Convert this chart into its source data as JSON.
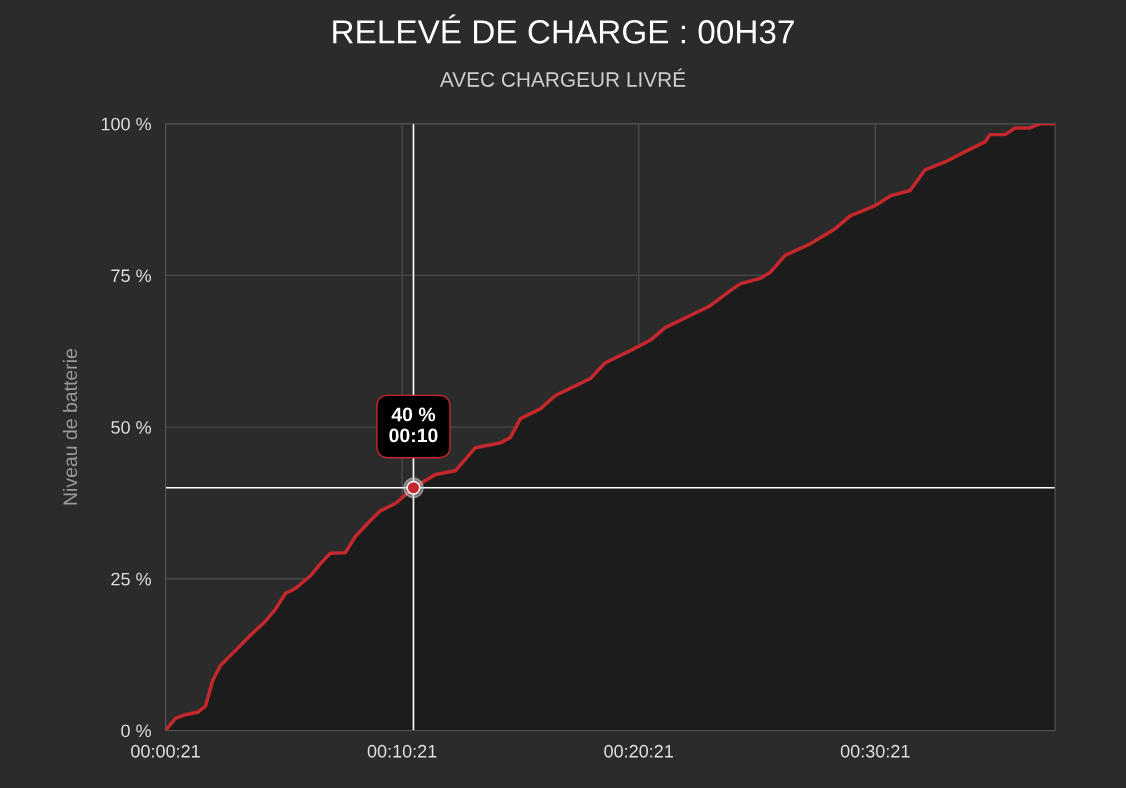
{
  "chart_data": {
    "type": "area",
    "title": "RELEVÉ DE CHARGE : 00H37",
    "subtitle": "AVEC CHARGEUR LIVRÉ",
    "ylabel": "Niveau de batterie",
    "x": [
      0.35,
      0.77,
      1.19,
      1.7,
      2.04,
      2.34,
      2.67,
      3.31,
      3.94,
      4.57,
      5.0,
      5.42,
      5.84,
      6.48,
      6.9,
      7.32,
      7.95,
      8.38,
      9.01,
      9.43,
      10.07,
      10.83,
      11.76,
      12.6,
      13.45,
      14.5,
      14.93,
      15.35,
      16.19,
      16.83,
      17.67,
      18.31,
      18.94,
      20.0,
      20.84,
      21.47,
      22.53,
      23.38,
      24.22,
      24.64,
      25.49,
      25.91,
      26.54,
      27.6,
      28.66,
      29.29,
      30.35,
      30.98,
      31.82,
      32.46,
      33.3,
      34.15,
      34.99,
      35.2,
      35.84,
      36.26,
      36.89,
      37.32,
      37.95
    ],
    "series": [
      {
        "color": "#c4282c",
        "values": [
          0,
          2,
          2.6,
          3,
          4,
          8.2,
          10.7,
          13.2,
          15.7,
          18,
          20,
          22.6,
          23.4,
          25.5,
          27.5,
          29.2,
          29.3,
          32,
          34.6,
          36.2,
          37.4,
          40,
          42.2,
          42.8,
          46.6,
          47.4,
          48.3,
          51.4,
          53,
          55.2,
          56.8,
          58,
          60.6,
          62.6,
          64.3,
          66.4,
          68.4,
          70,
          72.5,
          73.6,
          74.5,
          75.5,
          78.3,
          80.2,
          82.7,
          84.8,
          86.5,
          88.1,
          89,
          92.4,
          93.7,
          95.4,
          97,
          98.2,
          98.2,
          99.3,
          99.3,
          100,
          100
        ]
      }
    ],
    "xlim": [
      0.35,
      37.95
    ],
    "xticks": [
      {
        "value": 0.35,
        "label": "00:00:21"
      },
      {
        "value": 10.35,
        "label": "00:10:21"
      },
      {
        "value": 20.35,
        "label": "00:20:21"
      },
      {
        "value": 30.35,
        "label": "00:30:21"
      }
    ],
    "ylim": [
      0,
      100
    ],
    "yticks": [
      {
        "value": 0,
        "label": "0 %"
      },
      {
        "value": 25,
        "label": "25 %"
      },
      {
        "value": 50,
        "label": "50 %"
      },
      {
        "value": 75,
        "label": "75 %"
      },
      {
        "value": 100,
        "label": "100 %"
      }
    ],
    "grid": true,
    "legend": false,
    "marker": "none",
    "line_style": "solid",
    "ref_lines": [
      {
        "axis": "x",
        "value": 10.83,
        "color": "#ffffff"
      },
      {
        "axis": "y",
        "value": 40,
        "color": "#ffffff"
      }
    ],
    "annotations": [
      {
        "text": "40 %\n00:10",
        "x": 10.83,
        "y": 40
      }
    ]
  }
}
